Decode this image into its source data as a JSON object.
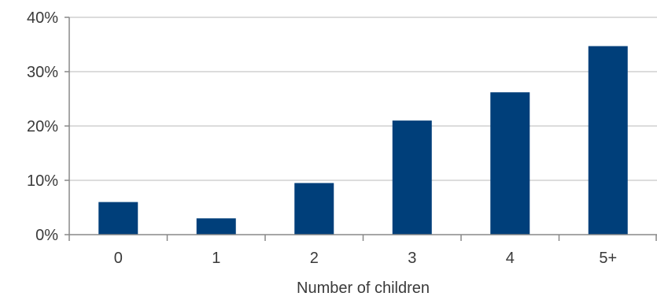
{
  "chart_data": {
    "type": "bar",
    "title": "",
    "xlabel": "Number of children",
    "ylabel": "",
    "categories": [
      "0",
      "1",
      "2",
      "3",
      "4",
      "5+"
    ],
    "values": [
      6,
      3,
      9.5,
      21,
      26.2,
      34.7
    ],
    "value_unit": "%",
    "ylim": [
      0,
      40
    ],
    "yticks": [
      0,
      10,
      20,
      30,
      40
    ],
    "ytick_labels": [
      "0%",
      "10%",
      "20%",
      "30%",
      "40%"
    ],
    "grid": true,
    "legend": "none",
    "colors": {
      "bar": "#003f7a",
      "grid": "#d0d0d0",
      "axis": "#888888"
    }
  }
}
